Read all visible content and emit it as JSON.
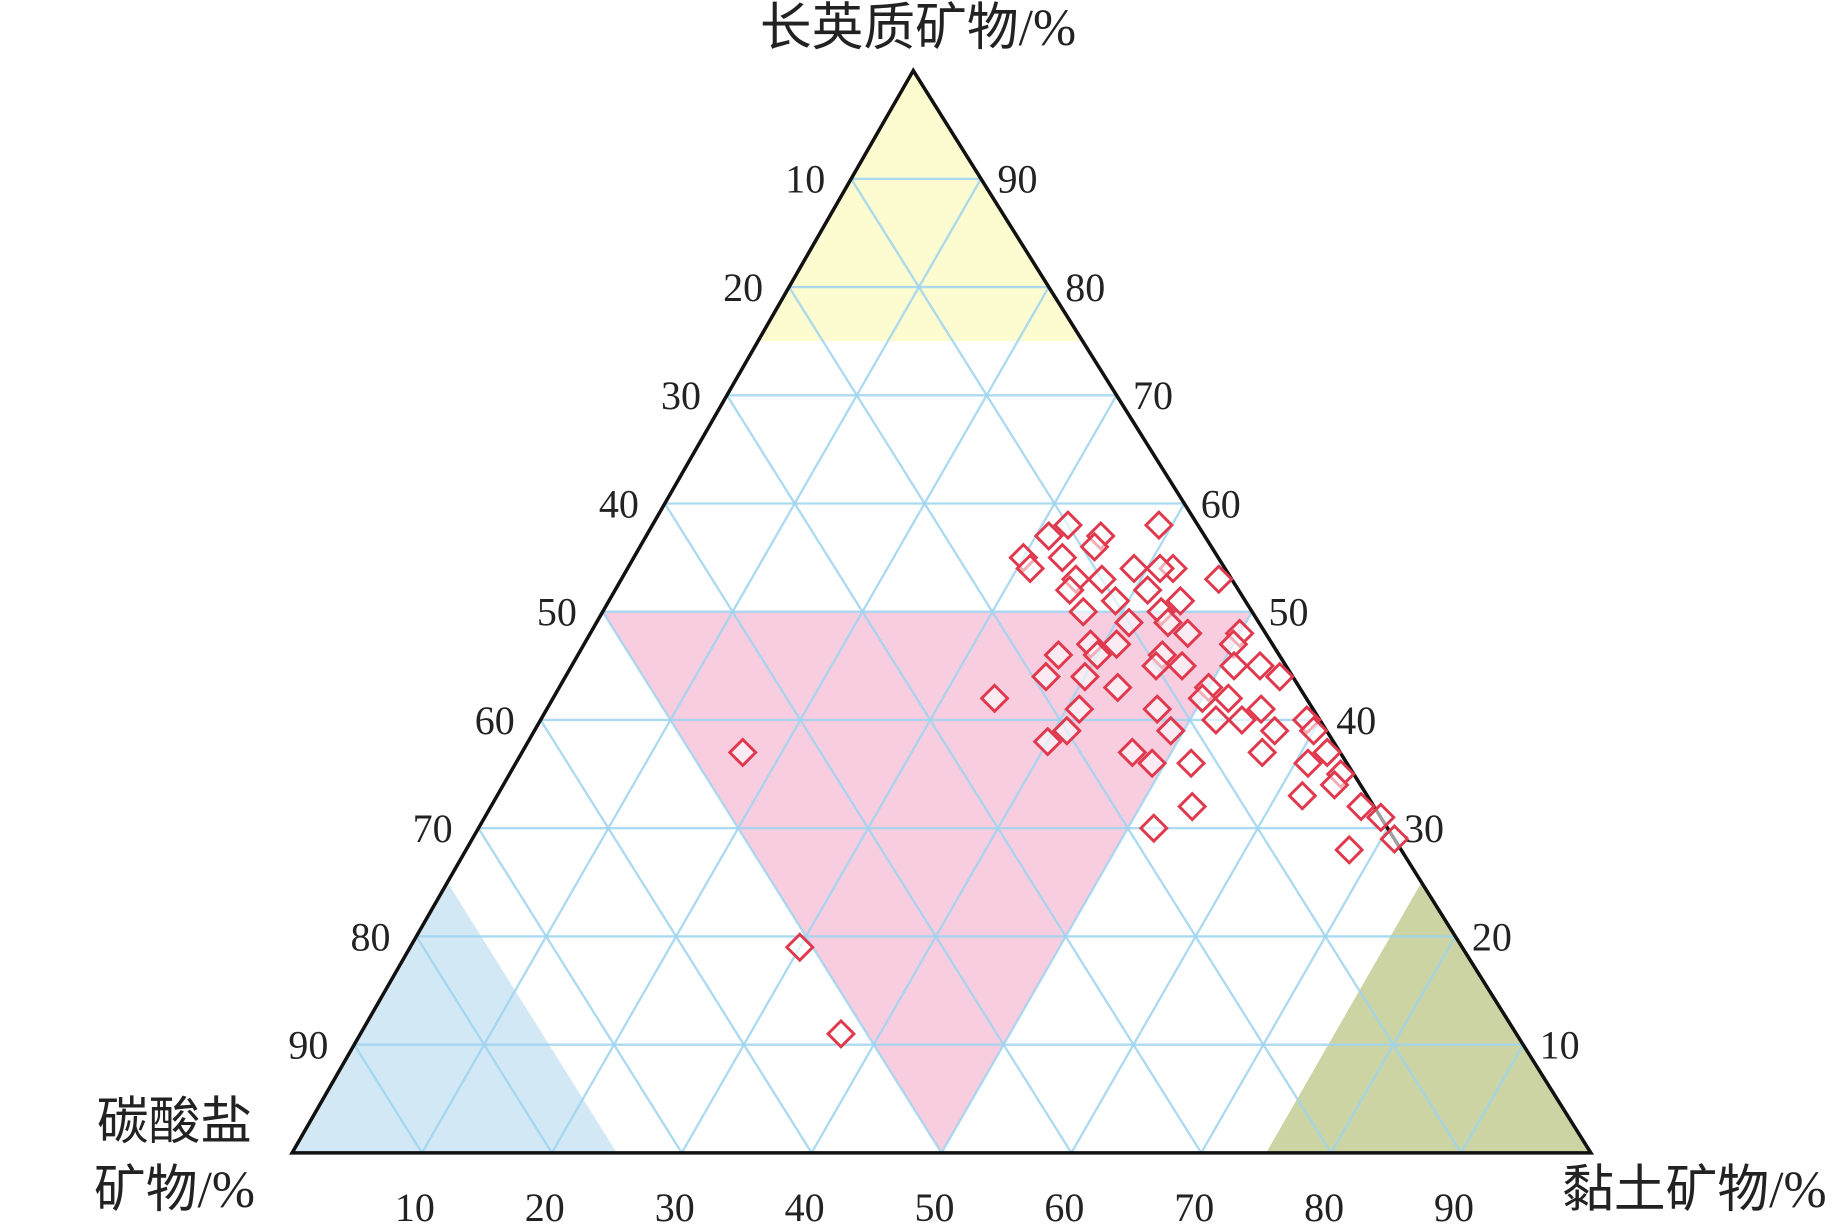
{
  "chart_data": {
    "type": "ternary",
    "title_top": "长英质矿物/%",
    "title_left": [
      "碳酸盐",
      "矿物/%"
    ],
    "title_right": "黏土矿物/%",
    "ticks": [
      10,
      20,
      30,
      40,
      50,
      60,
      70,
      80,
      90
    ],
    "grid": true,
    "grid_color": "#9dd4ee",
    "regions": [
      {
        "color": "#fdfbd0",
        "vertices": [
          [
            100,
            0
          ],
          [
            75,
            0
          ],
          [
            75,
            25
          ]
        ]
      },
      {
        "color": "#f9cde0",
        "vertices": [
          [
            50,
            0
          ],
          [
            50,
            50
          ],
          [
            0,
            50
          ]
        ]
      },
      {
        "color": "#d3e8f5",
        "vertices": [
          [
            0,
            0
          ],
          [
            25,
            0
          ],
          [
            0,
            25
          ]
        ]
      },
      {
        "color": "#ccd4a4",
        "vertices": [
          [
            0,
            100
          ],
          [
            25,
            75
          ],
          [
            0,
            75
          ]
        ]
      }
    ],
    "series": [
      {
        "color": "#e0394d",
        "felsic": [
          58,
          58,
          57,
          56,
          57,
          55,
          55,
          54,
          53,
          54,
          54,
          54,
          53,
          53,
          52,
          52,
          51,
          51,
          50,
          49,
          50,
          48,
          48,
          49,
          47,
          47,
          46,
          46,
          46,
          44,
          44,
          45,
          45,
          47,
          45,
          45,
          44,
          43,
          43,
          42,
          41,
          42,
          41,
          40,
          40,
          41,
          39,
          38,
          39,
          40,
          39,
          39,
          37,
          37,
          37,
          36,
          36,
          36,
          35,
          34,
          33,
          32,
          32,
          31,
          29,
          28,
          30,
          42,
          37,
          19,
          11
        ],
        "clay": [
          39,
          32,
          35,
          35,
          31,
          30,
          33,
          31,
          46,
          42,
          41,
          39,
          37,
          35,
          35,
          41,
          39,
          44,
          37,
          41,
          43,
          46,
          50,
          44,
          39,
          41,
          40,
          45,
          37,
          37,
          40,
          45,
          47,
          50,
          51,
          53,
          55,
          50,
          43,
          50,
          47,
          52,
          55,
          59,
          52,
          41,
          41,
          40,
          49,
          54,
          57,
          60,
          57,
          62,
          47,
          49,
          52,
          61,
          64,
          64,
          62,
          67,
          54,
          69,
          71,
          68,
          52,
          34,
          17,
          30,
          37
        ]
      }
    ]
  }
}
